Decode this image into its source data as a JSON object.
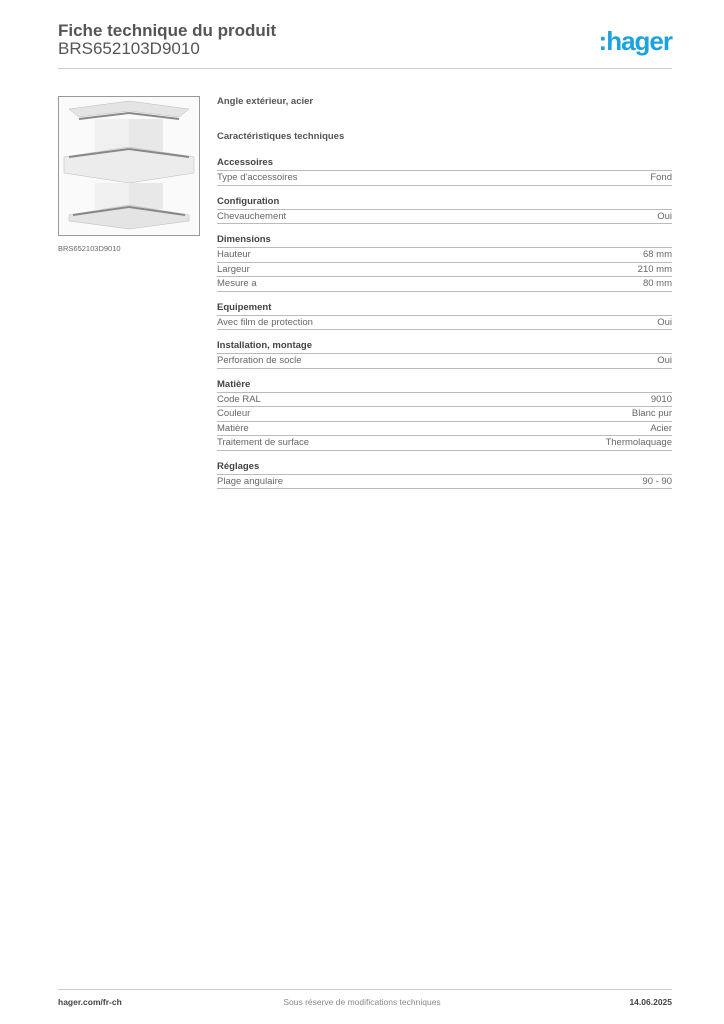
{
  "header": {
    "title": "Fiche technique du produit",
    "product_code": "BRS652103D9010",
    "logo": ":hager",
    "brand_color": "#1aa3e0"
  },
  "product": {
    "image_caption": "BRS652103D9010",
    "description": "Angle extérieur, acier",
    "characteristics_heading": "Caractéristiques techniques"
  },
  "sections": [
    {
      "title": "Accessoires",
      "rows": [
        {
          "label": "Type d'accessoires",
          "value": "Fond"
        }
      ]
    },
    {
      "title": "Configuration",
      "rows": [
        {
          "label": "Chevauchement",
          "value": "Oui"
        }
      ]
    },
    {
      "title": "Dimensions",
      "rows": [
        {
          "label": "Hauteur",
          "value": "68 mm"
        },
        {
          "label": "Largeur",
          "value": "210 mm"
        },
        {
          "label": "Mesure a",
          "value": "80 mm"
        }
      ]
    },
    {
      "title": "Equipement",
      "rows": [
        {
          "label": "Avec film de protection",
          "value": "Oui"
        }
      ]
    },
    {
      "title": "Installation, montage",
      "rows": [
        {
          "label": "Perforation de socle",
          "value": "Oui"
        }
      ]
    },
    {
      "title": "Matière",
      "rows": [
        {
          "label": "Code RAL",
          "value": "9010"
        },
        {
          "label": "Couleur",
          "value": "Blanc pur"
        },
        {
          "label": "Matière",
          "value": "Acier"
        },
        {
          "label": "Traitement de surface",
          "value": "Thermolaquage"
        }
      ]
    },
    {
      "title": "Réglages",
      "rows": [
        {
          "label": "Plage angulaire",
          "value": "90 - 90"
        }
      ]
    }
  ],
  "footer": {
    "website": "hager.com/fr-ch",
    "notice": "Sous réserve de modifications techniques",
    "date": "14.06.2025"
  }
}
